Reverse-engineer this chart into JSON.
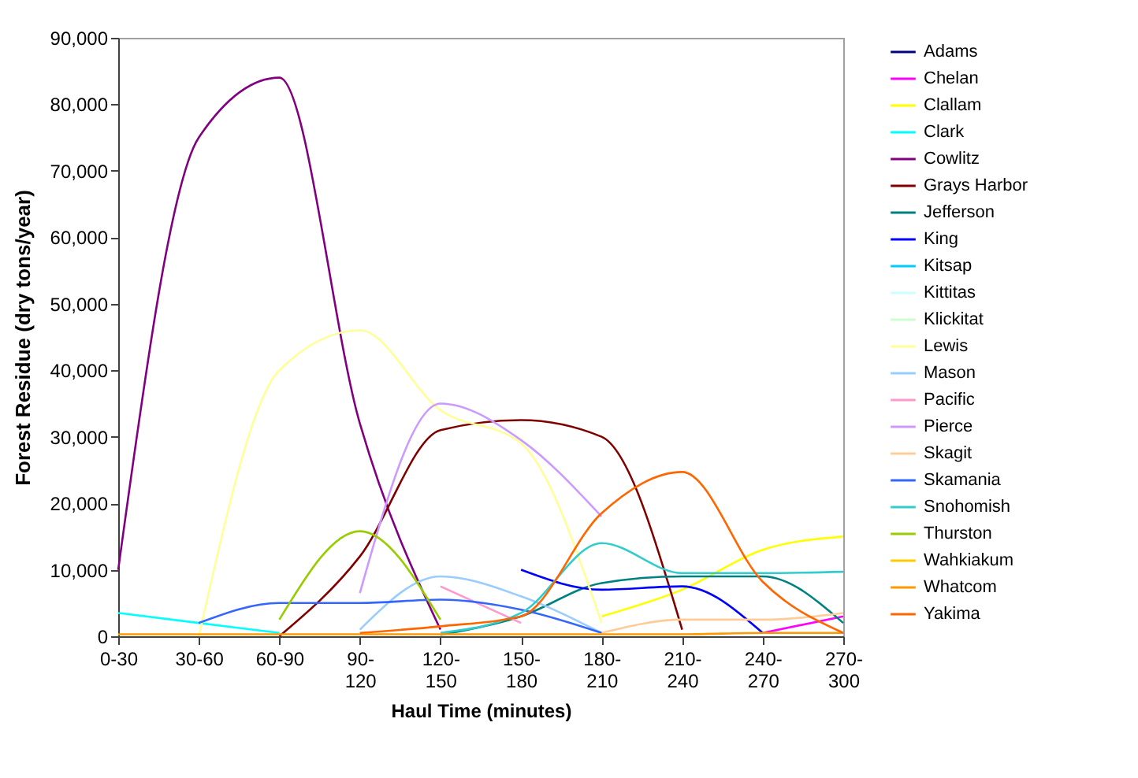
{
  "chart_data": {
    "type": "line",
    "xlabel": "Haul Time (minutes)",
    "ylabel": "Forest Residue (dry tons/year)",
    "categories": [
      "0-30",
      "30-60",
      "60-90",
      "90-120",
      "120-150",
      "150-180",
      "180-210",
      "210-240",
      "240-270",
      "270-300"
    ],
    "ylim": [
      0,
      90000
    ],
    "yticks": [
      {
        "value": 0,
        "label": "0"
      },
      {
        "value": 10000,
        "label": "10,000"
      },
      {
        "value": 20000,
        "label": "20,000"
      },
      {
        "value": 30000,
        "label": "30,000"
      },
      {
        "value": 40000,
        "label": "40,000"
      },
      {
        "value": 50000,
        "label": "50,000"
      },
      {
        "value": 60000,
        "label": "60,000"
      },
      {
        "value": 70000,
        "label": "70,000"
      },
      {
        "value": 80000,
        "label": "80,000"
      },
      {
        "value": 90000,
        "label": "90,000"
      }
    ],
    "grid": false,
    "legend": "right",
    "marker": "none",
    "line_style": "solid",
    "series": [
      {
        "name": "Adams",
        "color": "#000080",
        "values": [
          null,
          null,
          null,
          null,
          null,
          null,
          null,
          null,
          null,
          null
        ]
      },
      {
        "name": "Chelan",
        "color": "#ff00ff",
        "values": [
          null,
          null,
          null,
          null,
          null,
          null,
          null,
          null,
          500,
          3000
        ]
      },
      {
        "name": "Clallam",
        "color": "#ffff00",
        "values": [
          null,
          null,
          null,
          null,
          null,
          null,
          3000,
          7000,
          13000,
          15000
        ]
      },
      {
        "name": "Clark",
        "color": "#00ffff",
        "values": [
          3500,
          2000,
          500,
          null,
          null,
          null,
          null,
          null,
          null,
          null
        ]
      },
      {
        "name": "Cowlitz",
        "color": "#800080",
        "values": [
          10000,
          75000,
          84000,
          32000,
          1000,
          null,
          null,
          null,
          null,
          null
        ]
      },
      {
        "name": "Grays Harbor",
        "color": "#800000",
        "values": [
          null,
          null,
          0,
          12000,
          31000,
          32500,
          30000,
          1000,
          null,
          null
        ]
      },
      {
        "name": "Jefferson",
        "color": "#008080",
        "values": [
          null,
          null,
          null,
          null,
          200,
          3000,
          8000,
          9000,
          9000,
          2000
        ]
      },
      {
        "name": "King",
        "color": "#0000ff",
        "values": [
          null,
          null,
          null,
          null,
          null,
          10000,
          7000,
          7500,
          500,
          null
        ]
      },
      {
        "name": "Kitsap",
        "color": "#00ccff",
        "values": [
          null,
          null,
          null,
          null,
          null,
          null,
          null,
          null,
          null,
          null
        ]
      },
      {
        "name": "Kittitas",
        "color": "#ccffff",
        "values": [
          null,
          null,
          null,
          null,
          null,
          null,
          null,
          null,
          null,
          null
        ]
      },
      {
        "name": "Klickitat",
        "color": "#ccffcc",
        "values": [
          null,
          null,
          null,
          null,
          null,
          null,
          null,
          null,
          null,
          null
        ]
      },
      {
        "name": "Lewis",
        "color": "#ffff99",
        "values": [
          null,
          0,
          40000,
          46000,
          34000,
          29000,
          2000,
          null,
          null,
          null
        ]
      },
      {
        "name": "Mason",
        "color": "#99ccff",
        "values": [
          null,
          null,
          null,
          1000,
          9000,
          6000,
          500,
          null,
          null,
          null
        ]
      },
      {
        "name": "Pacific",
        "color": "#ff99cc",
        "values": [
          null,
          null,
          null,
          null,
          7500,
          2000,
          null,
          null,
          null,
          null
        ]
      },
      {
        "name": "Pierce",
        "color": "#cc99ff",
        "values": [
          null,
          null,
          null,
          6500,
          35000,
          29500,
          18000,
          null,
          null,
          null
        ]
      },
      {
        "name": "Skagit",
        "color": "#ffcc99",
        "values": [
          null,
          null,
          null,
          null,
          null,
          null,
          500,
          2500,
          2500,
          3500
        ]
      },
      {
        "name": "Skamania",
        "color": "#3366ff",
        "values": [
          null,
          2000,
          5000,
          5000,
          5500,
          4000,
          500,
          null,
          null,
          null
        ]
      },
      {
        "name": "Snohomish",
        "color": "#33cccc",
        "values": [
          null,
          null,
          null,
          null,
          500,
          3500,
          14000,
          9500,
          9500,
          9700
        ]
      },
      {
        "name": "Thurston",
        "color": "#99cc00",
        "values": [
          null,
          null,
          2500,
          15800,
          2500,
          null,
          null,
          null,
          null,
          null
        ]
      },
      {
        "name": "Wahkiakum",
        "color": "#ffcc00",
        "values": [
          null,
          null,
          null,
          null,
          null,
          null,
          null,
          null,
          null,
          null
        ]
      },
      {
        "name": "Whatcom",
        "color": "#ff9900",
        "values": [
          300,
          300,
          300,
          300,
          300,
          300,
          300,
          300,
          500,
          500
        ]
      },
      {
        "name": "Yakima",
        "color": "#ff6600",
        "values": [
          null,
          null,
          null,
          500,
          1500,
          3000,
          18500,
          24700,
          8200,
          500
        ]
      }
    ]
  }
}
